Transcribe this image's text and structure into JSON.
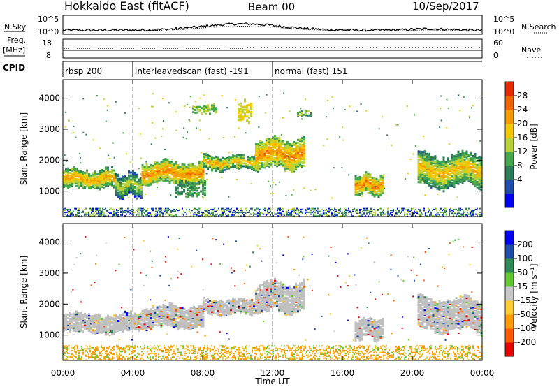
{
  "header": {
    "radar": "Hokkaido East (fitACF)",
    "beam": "Beam 00",
    "date": "10/Sep/2017"
  },
  "noise_panel": {
    "left_label": "N.Sky",
    "right_label": "N.Search",
    "left_ticks": [
      "10^5",
      "10^0"
    ],
    "right_ticks": [
      "10^5",
      "10^0"
    ]
  },
  "freq_panel": {
    "left_label_1": "Freq.",
    "left_label_2": "[MHz]",
    "right_label": "Nave",
    "left_ticks": [
      "18",
      "8"
    ],
    "right_ticks": [
      "60",
      "0"
    ]
  },
  "cpid": {
    "label": "CPID",
    "segments": [
      {
        "start_hour": 0,
        "end_hour": 4,
        "text": "rbsp 200"
      },
      {
        "start_hour": 4,
        "end_hour": 12,
        "text": "interleavedscan (fast) -191"
      },
      {
        "start_hour": 12,
        "end_hour": 24,
        "text": "normal (fast) 151"
      }
    ]
  },
  "colors": {
    "power_scale": [
      "#0000ff",
      "#1f4fa8",
      "#2e7d5a",
      "#46a84e",
      "#b9d13a",
      "#f2c800",
      "#f59c00",
      "#f06400",
      "#e62a00"
    ],
    "velocity_scale": [
      "#e60000",
      "#ff5a00",
      "#ff9a00",
      "#ffcc33",
      "#c8c8c8",
      "#64c832",
      "#2e8b57",
      "#1f4fa8",
      "#0000ff"
    ],
    "ground_scatter": "#c0c0c0"
  },
  "power_colorbar": {
    "title": "Power [dB]",
    "ticks": [
      "28",
      "24",
      "20",
      "16",
      "12",
      "8",
      "4"
    ]
  },
  "velocity_colorbar": {
    "title": "Velocity [m s⁻¹]",
    "ticks": [
      "200",
      "100",
      "50",
      "15",
      "-15",
      "-50",
      "-100",
      "-200"
    ]
  },
  "chart_data": [
    {
      "type": "heatmap",
      "title": "Power",
      "ylabel": "Slant Range [km]",
      "xlabel": "",
      "xlim_hours": [
        0,
        24
      ],
      "ylim": [
        180,
        4600
      ],
      "x_ticks": [
        "00:00",
        "04:00",
        "08:00",
        "12:00",
        "16:00",
        "20:00",
        "00:00"
      ],
      "y_ticks": [
        1000,
        2000,
        3000,
        4000
      ],
      "bands": [
        {
          "start_h": 0.0,
          "end_h": 3.0,
          "low_km": 1150,
          "high_km": 1700,
          "level": 20
        },
        {
          "start_h": 3.0,
          "end_h": 4.5,
          "low_km": 900,
          "high_km": 1600,
          "level": 14
        },
        {
          "start_h": 4.5,
          "end_h": 8.0,
          "low_km": 1300,
          "high_km": 1950,
          "level": 22
        },
        {
          "start_h": 8.0,
          "end_h": 11.0,
          "low_km": 1750,
          "high_km": 2150,
          "level": 18
        },
        {
          "start_h": 11.0,
          "end_h": 13.8,
          "low_km": 1800,
          "high_km": 2700,
          "level": 22
        },
        {
          "start_h": 16.7,
          "end_h": 18.3,
          "low_km": 950,
          "high_km": 1550,
          "level": 22
        },
        {
          "start_h": 20.3,
          "end_h": 24.0,
          "low_km": 1200,
          "high_km": 2200,
          "level": 18
        }
      ],
      "patches": [
        {
          "start_h": 7.4,
          "end_h": 8.8,
          "low_km": 3550,
          "high_km": 3800,
          "level": 14
        },
        {
          "start_h": 10.0,
          "end_h": 10.8,
          "low_km": 3300,
          "high_km": 3900,
          "level": 18
        },
        {
          "start_h": 13.4,
          "end_h": 14.2,
          "low_km": 3450,
          "high_km": 3600,
          "level": 12
        },
        {
          "start_h": 6.4,
          "end_h": 8.2,
          "low_km": 900,
          "high_km": 1350,
          "level": 10
        }
      ]
    },
    {
      "type": "heatmap",
      "title": "Velocity",
      "ylabel": "Slant Range [km]",
      "xlabel": "Time UT",
      "xlim_hours": [
        0,
        24
      ],
      "ylim": [
        180,
        4600
      ],
      "x_ticks": [
        "00:00",
        "04:00",
        "08:00",
        "12:00",
        "16:00",
        "20:00",
        "00:00"
      ],
      "y_ticks": [
        1000,
        2000,
        3000,
        4000
      ],
      "bands": [
        {
          "start_h": 0.0,
          "end_h": 4.5,
          "low_km": 1150,
          "high_km": 1700,
          "level": 0
        },
        {
          "start_h": 4.5,
          "end_h": 8.0,
          "low_km": 1300,
          "high_km": 1950,
          "level": 0
        },
        {
          "start_h": 8.0,
          "end_h": 11.0,
          "low_km": 1750,
          "high_km": 2150,
          "level": 0
        },
        {
          "start_h": 11.0,
          "end_h": 13.8,
          "low_km": 1800,
          "high_km": 2700,
          "level": 0
        },
        {
          "start_h": 16.7,
          "end_h": 18.3,
          "low_km": 950,
          "high_km": 1550,
          "level": 0
        },
        {
          "start_h": 20.3,
          "end_h": 24.0,
          "low_km": 1200,
          "high_km": 2200,
          "level": 0
        }
      ]
    }
  ]
}
